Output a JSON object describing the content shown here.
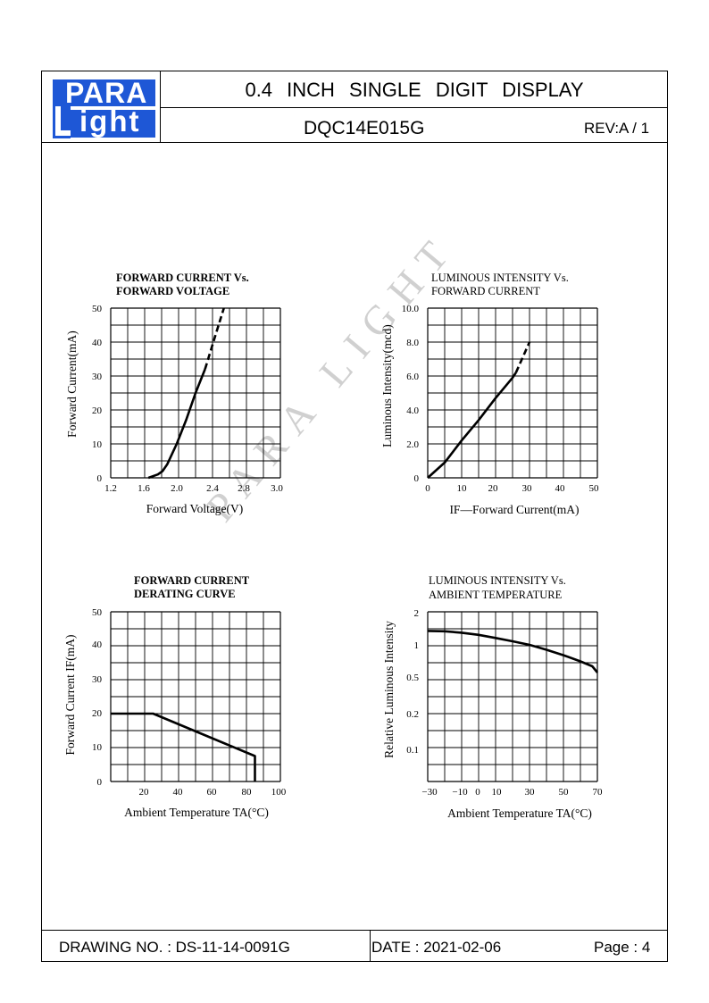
{
  "header": {
    "logo_top": "PARA",
    "logo_bottom": "ight",
    "title": "0.4   INCH   SINGLE   DIGIT   DISPLAY",
    "part_number": "DQC14E015G",
    "revision": "REV:A / 1"
  },
  "footer": {
    "drawing_no": "DRAWING NO. : DS-11-14-0091G",
    "date": "DATE : 2021-02-06",
    "page": "Page : 4"
  },
  "watermark": "PARA LIGHT",
  "chart_data": [
    {
      "type": "line",
      "title": "FORWARD  CURRENT  Vs.\nFORWARD  VOLTAGE",
      "title_lines": [
        "FORWARD  CURRENT  Vs.",
        "FORWARD  VOLTAGE"
      ],
      "xlabel": "Forward  Voltage(V)",
      "ylabel": "Forward  Current(mA)",
      "xlim": [
        1.2,
        3.0
      ],
      "ylim": [
        0,
        50
      ],
      "x_ticks": [
        "1.2",
        "1.6",
        "2.0",
        "2.4",
        "2.8",
        "3.0"
      ],
      "y_ticks": [
        "0",
        "10",
        "20",
        "30",
        "40",
        "50"
      ],
      "grid": true,
      "series": [
        {
          "style": "solid",
          "x": [
            1.6,
            1.7,
            1.75,
            1.8,
            1.9,
            2.0,
            2.1,
            2.2
          ],
          "y": [
            0,
            1,
            2,
            4,
            10,
            17,
            25,
            32
          ]
        },
        {
          "style": "dashed",
          "x": [
            2.2,
            2.3,
            2.4
          ],
          "y": [
            32,
            41,
            50
          ]
        }
      ]
    },
    {
      "type": "line",
      "title": "LUMINOUS  INTENSITY  Vs.\nFORWARD  CURRENT",
      "title_lines": [
        "LUMINOUS  INTENSITY  Vs.",
        "FORWARD  CURRENT"
      ],
      "xlabel": "IF—Forward  Current(mA)",
      "ylabel": "Luminous  Intensity(mcd)",
      "xlim": [
        0,
        50
      ],
      "ylim": [
        0,
        10
      ],
      "x_ticks": [
        "0",
        "10",
        "20",
        "30",
        "40",
        "50"
      ],
      "y_ticks": [
        "0",
        "2.0",
        "4.0",
        "6.0",
        "8.0",
        "10.0"
      ],
      "grid": true,
      "series": [
        {
          "style": "solid",
          "x": [
            0,
            5,
            10,
            15,
            20,
            25,
            26
          ],
          "y": [
            0,
            0.9,
            2.2,
            3.4,
            4.7,
            5.9,
            6.2
          ]
        },
        {
          "style": "dashed",
          "x": [
            26,
            28,
            30
          ],
          "y": [
            6.2,
            7.1,
            8.0
          ]
        }
      ]
    },
    {
      "type": "line",
      "title": "FORWARD  CURRENT\nDERATING  CURVE",
      "title_lines": [
        "FORWARD  CURRENT",
        "DERATING  CURVE"
      ],
      "xlabel": "Ambient  Temperature  TA(°C)",
      "ylabel": "Forward  Current  IF(mA)",
      "xlim": [
        0,
        100
      ],
      "ylim": [
        0,
        50
      ],
      "x_ticks": [
        "20",
        "40",
        "60",
        "80",
        "100"
      ],
      "y_ticks": [
        "0",
        "10",
        "20",
        "30",
        "40",
        "50"
      ],
      "grid": true,
      "series": [
        {
          "style": "solid",
          "x": [
            0,
            25,
            85,
            85
          ],
          "y": [
            20,
            20,
            7.5,
            0
          ]
        }
      ]
    },
    {
      "type": "line",
      "title": "LUMINOUS  INTENSITY  Vs.\nAMBIENT  TEMPERATURE",
      "title_lines": [
        "LUMINOUS  INTENSITY  Vs.",
        "AMBIENT  TEMPERATURE"
      ],
      "xlabel": "Ambient  Temperature  TA(°C)",
      "ylabel": "Relative  Luminous  Intensity",
      "xlim": [
        -30,
        70
      ],
      "y_scale": "log",
      "x_ticks": [
        "−30",
        "−10",
        "0",
        "10",
        "30",
        "50",
        "70"
      ],
      "y_ticks": [
        "2",
        "1",
        "0.5",
        "0.2",
        "0.1"
      ],
      "grid": true,
      "series": [
        {
          "style": "solid",
          "x": [
            -30,
            -20,
            -10,
            0,
            10,
            20,
            30,
            40,
            50,
            60,
            67,
            70
          ],
          "y": [
            1.35,
            1.34,
            1.3,
            1.24,
            1.16,
            1.08,
            1.0,
            0.9,
            0.8,
            0.7,
            0.63,
            0.55
          ]
        }
      ]
    }
  ]
}
